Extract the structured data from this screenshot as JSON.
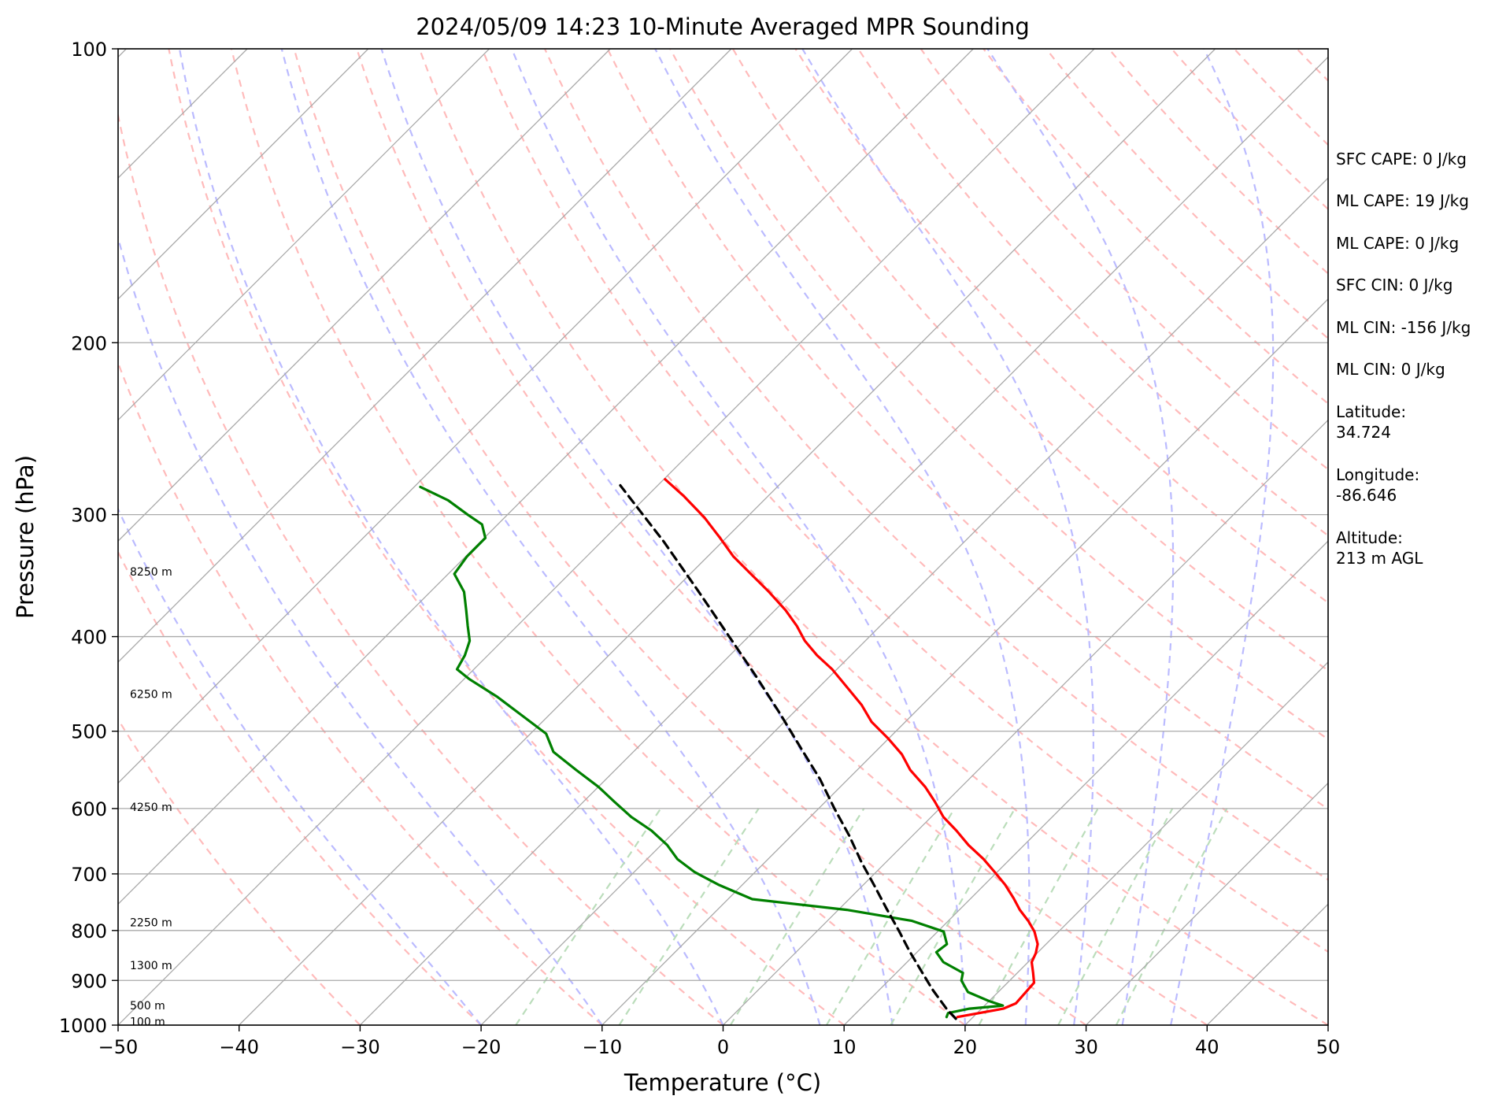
{
  "chart_data": {
    "type": "line",
    "chart_kind": "skew-T log-P diagram",
    "title": "2024/05/09 14:23 10-Minute Averaged MPR Sounding",
    "xlabel": "Temperature (°C)",
    "ylabel": "Pressure (hPa)",
    "xlim": [
      -50,
      50
    ],
    "ylim": [
      1000,
      100
    ],
    "y_scale": "log",
    "x_skew": "isotherms skewed 45°",
    "grid": true,
    "x_ticks": [
      -50,
      -40,
      -30,
      -20,
      -10,
      0,
      10,
      20,
      30,
      40,
      50
    ],
    "x_tick_labels": [
      "−50",
      "−40",
      "−30",
      "−20",
      "−10",
      "0",
      "10",
      "20",
      "30",
      "40",
      "50"
    ],
    "y_ticks": [
      100,
      200,
      300,
      400,
      500,
      600,
      700,
      800,
      900,
      1000
    ],
    "y_tick_labels": [
      "100",
      "200",
      "300",
      "400",
      "500",
      "600",
      "700",
      "800",
      "900",
      "1000"
    ],
    "height_labels": [
      {
        "pressure": 992,
        "label": "100 m"
      },
      {
        "pressure": 955,
        "label": "500 m"
      },
      {
        "pressure": 868,
        "label": "1300 m"
      },
      {
        "pressure": 785,
        "label": "2250 m"
      },
      {
        "pressure": 598,
        "label": "4250 m"
      },
      {
        "pressure": 458,
        "label": "6250 m"
      },
      {
        "pressure": 343,
        "label": "8250 m"
      }
    ],
    "background_lines": {
      "isotherms": {
        "color": "#aaaaaa",
        "style": "solid"
      },
      "isobars": {
        "color": "#aaaaaa",
        "style": "solid"
      },
      "dry_adiabats": {
        "color": "#ffbbbb",
        "style": "dashed"
      },
      "moist_adiabats": {
        "color": "#bbbbff",
        "style": "dashed"
      },
      "mixing_ratio_lines": {
        "color": "#bbddbb",
        "style": "dashed"
      }
    },
    "series": [
      {
        "name": "temperature",
        "color": "#ff0000",
        "style": "solid",
        "points": [
          [
            981,
            18.7
          ],
          [
            962,
            21.8
          ],
          [
            950,
            22.4
          ],
          [
            928,
            22.3
          ],
          [
            905,
            22.2
          ],
          [
            884,
            21.3
          ],
          [
            862,
            20.3
          ],
          [
            844,
            19.9
          ],
          [
            826,
            19.3
          ],
          [
            802,
            18.0
          ],
          [
            782,
            16.6
          ],
          [
            762,
            15.0
          ],
          [
            741,
            13.5
          ],
          [
            718,
            11.7
          ],
          [
            697,
            9.8
          ],
          [
            676,
            7.8
          ],
          [
            654,
            5.4
          ],
          [
            632,
            3.2
          ],
          [
            612,
            1.0
          ],
          [
            590,
            -1.0
          ],
          [
            570,
            -3.0
          ],
          [
            548,
            -5.6
          ],
          [
            528,
            -7.6
          ],
          [
            509,
            -10.0
          ],
          [
            489,
            -12.8
          ],
          [
            470,
            -15.0
          ],
          [
            452,
            -17.5
          ],
          [
            432,
            -20.4
          ],
          [
            418,
            -22.8
          ],
          [
            404,
            -25.0
          ],
          [
            390,
            -26.9
          ],
          [
            376,
            -29.1
          ],
          [
            360,
            -32.0
          ],
          [
            345,
            -35.0
          ],
          [
            331,
            -37.9
          ],
          [
            317,
            -40.5
          ],
          [
            302,
            -43.5
          ],
          [
            287,
            -47.0
          ],
          [
            276,
            -49.9
          ]
        ]
      },
      {
        "name": "dewpoint",
        "color": "#008000",
        "style": "solid",
        "points": [
          [
            981,
            17.8
          ],
          [
            972,
            17.6
          ],
          [
            962,
            19.0
          ],
          [
            955,
            21.5
          ],
          [
            945,
            20.0
          ],
          [
            925,
            17.5
          ],
          [
            900,
            16.0
          ],
          [
            884,
            15.5
          ],
          [
            862,
            13.0
          ],
          [
            842,
            11.6
          ],
          [
            826,
            11.8
          ],
          [
            802,
            10.5
          ],
          [
            782,
            7.0
          ],
          [
            762,
            0.7
          ],
          [
            743,
            -8.0
          ],
          [
            718,
            -12.0
          ],
          [
            697,
            -15.0
          ],
          [
            676,
            -17.5
          ],
          [
            654,
            -19.5
          ],
          [
            632,
            -22.0
          ],
          [
            612,
            -24.8
          ],
          [
            590,
            -27.5
          ],
          [
            570,
            -30.0
          ],
          [
            548,
            -33.2
          ],
          [
            525,
            -36.6
          ],
          [
            503,
            -38.7
          ],
          [
            483,
            -42.0
          ],
          [
            461,
            -45.8
          ],
          [
            442,
            -49.6
          ],
          [
            432,
            -51.4
          ],
          [
            418,
            -51.9
          ],
          [
            404,
            -52.7
          ],
          [
            390,
            -54.1
          ],
          [
            376,
            -55.5
          ],
          [
            360,
            -57.2
          ],
          [
            345,
            -59.5
          ],
          [
            331,
            -59.9
          ],
          [
            317,
            -59.9
          ],
          [
            307,
            -61.3
          ],
          [
            300,
            -63.3
          ],
          [
            290,
            -66.1
          ],
          [
            281,
            -69.5
          ]
        ]
      },
      {
        "name": "parcel",
        "color": "#000000",
        "style": "dashed",
        "points": [
          [
            985,
            18.7
          ],
          [
            962,
            17.1
          ],
          [
            920,
            14.4
          ],
          [
            880,
            11.9
          ],
          [
            840,
            9.3
          ],
          [
            800,
            6.7
          ],
          [
            760,
            3.9
          ],
          [
            720,
            1.0
          ],
          [
            680,
            -2.1
          ],
          [
            640,
            -5.2
          ],
          [
            600,
            -8.7
          ],
          [
            560,
            -12.3
          ],
          [
            520,
            -16.5
          ],
          [
            480,
            -21.0
          ],
          [
            440,
            -26.0
          ],
          [
            400,
            -31.6
          ],
          [
            360,
            -37.8
          ],
          [
            320,
            -44.8
          ],
          [
            280,
            -53.1
          ]
        ]
      }
    ]
  },
  "side_panel": {
    "sfc_cape": "SFC CAPE: 0 J/kg",
    "ml_cape_1": "ML CAPE: 19 J/kg",
    "ml_cape_2": "ML CAPE: 0 J/kg",
    "sfc_cin": "SFC CIN: 0 J/kg",
    "ml_cin_1": "ML CIN: -156 J/kg",
    "ml_cin_2": "ML CIN: 0 J/kg",
    "latitude_label": "Latitude:",
    "latitude_value": "34.724",
    "longitude_label": "Longitude:",
    "longitude_value": "-86.646",
    "altitude_label": "Altitude:",
    "altitude_value": "213 m AGL"
  }
}
